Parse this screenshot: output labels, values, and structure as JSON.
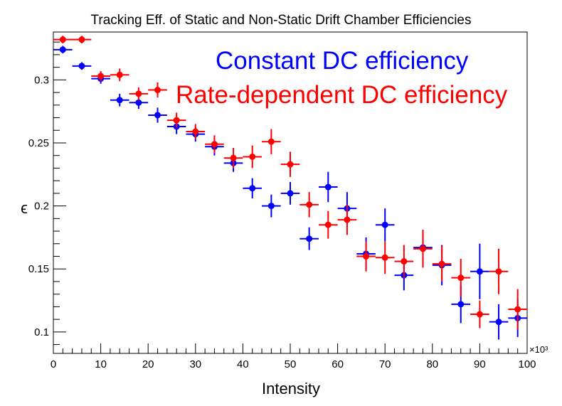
{
  "chart_data": {
    "type": "scatter",
    "title": "Tracking Eff. of Static and Non-Static Drift Chamber Efficiencies",
    "xlabel": "Intensity",
    "ylabel": "ϵ",
    "x_exponent_label": "×10³",
    "xlim": [
      0,
      100
    ],
    "ylim": [
      0.083,
      0.338
    ],
    "x_ticks": [
      0,
      10,
      20,
      30,
      40,
      50,
      60,
      70,
      80,
      90,
      100
    ],
    "x_tick_labels": [
      "0",
      "10",
      "20",
      "30",
      "40",
      "50",
      "60",
      "70",
      "80",
      "90",
      "100"
    ],
    "y_ticks": [
      0.1,
      0.15,
      0.2,
      0.25,
      0.3
    ],
    "y_tick_labels": [
      "0.1",
      "0.15",
      "0.2",
      "0.25",
      "0.3"
    ],
    "grid": false,
    "legend_position": "top-right",
    "x_bin_halfwidth": 2,
    "series": [
      {
        "name": "Constant DC efficiency",
        "color": "#0000ff",
        "x": [
          2,
          6,
          10,
          14,
          18,
          22,
          26,
          30,
          34,
          38,
          42,
          46,
          50,
          54,
          58,
          62,
          66,
          70,
          74,
          78,
          82,
          86,
          90,
          94,
          98
        ],
        "y": [
          0.324,
          0.311,
          0.301,
          0.284,
          0.282,
          0.272,
          0.263,
          0.257,
          0.247,
          0.234,
          0.214,
          0.2,
          0.21,
          0.174,
          0.215,
          0.198,
          0.162,
          0.185,
          0.145,
          0.167,
          0.153,
          0.122,
          0.148,
          0.108,
          0.111
        ],
        "yerr": [
          0.003,
          0.003,
          0.004,
          0.005,
          0.005,
          0.006,
          0.006,
          0.006,
          0.007,
          0.007,
          0.008,
          0.009,
          0.009,
          0.009,
          0.012,
          0.013,
          0.013,
          0.013,
          0.012,
          0.014,
          0.016,
          0.015,
          0.022,
          0.014,
          0.015
        ]
      },
      {
        "name": "Rate-dependent DC efficiency",
        "color": "#ff0000",
        "x": [
          2,
          6,
          10,
          14,
          18,
          22,
          26,
          30,
          34,
          38,
          42,
          46,
          50,
          54,
          58,
          62,
          66,
          70,
          74,
          78,
          82,
          86,
          90,
          94,
          98
        ],
        "y": [
          0.332,
          0.332,
          0.303,
          0.304,
          0.289,
          0.292,
          0.268,
          0.259,
          0.249,
          0.238,
          0.239,
          0.251,
          0.233,
          0.201,
          0.185,
          0.189,
          0.16,
          0.159,
          0.156,
          0.166,
          0.154,
          0.143,
          0.114,
          0.148,
          0.118
        ],
        "yerr": [
          0.003,
          0.003,
          0.004,
          0.005,
          0.005,
          0.006,
          0.006,
          0.006,
          0.007,
          0.008,
          0.009,
          0.01,
          0.01,
          0.01,
          0.011,
          0.012,
          0.012,
          0.013,
          0.013,
          0.015,
          0.014,
          0.015,
          0.011,
          0.018,
          0.016
        ]
      }
    ]
  }
}
